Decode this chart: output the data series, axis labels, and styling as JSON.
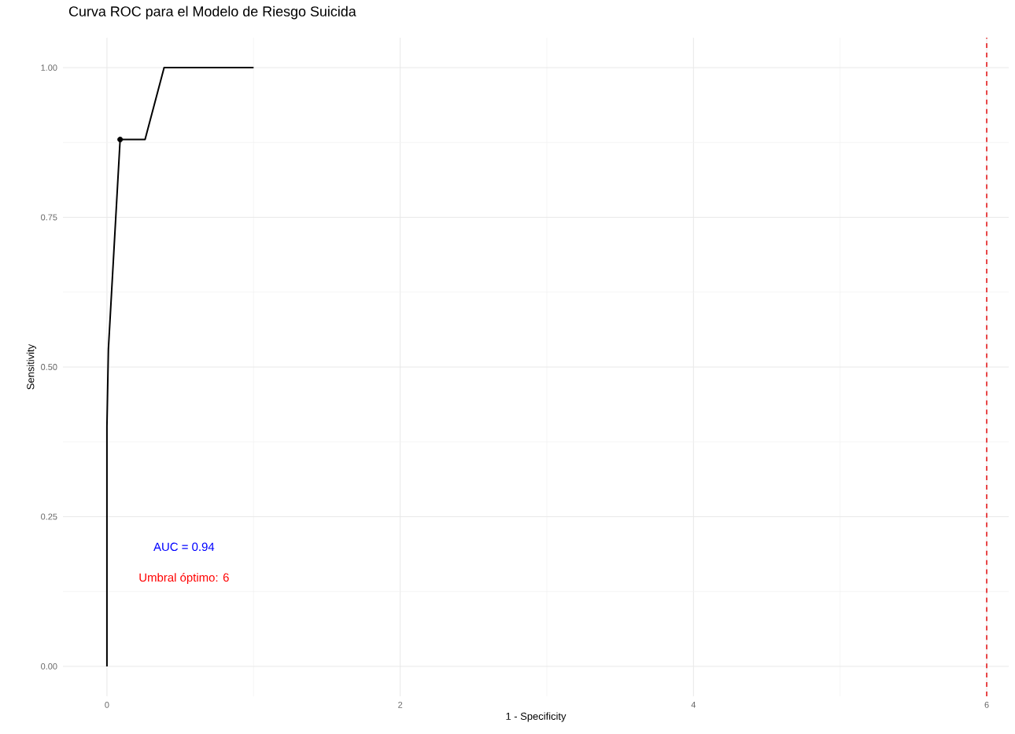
{
  "chart_data": {
    "type": "line",
    "title": "Curva ROC para el Modelo de Riesgo Suicida",
    "xlabel": "1 - Specificity",
    "ylabel": "Sensitivity",
    "series": [
      {
        "color": "#000000",
        "x": [
          0,
          0,
          0.01,
          0.09,
          0.26,
          0.39,
          1
        ],
        "values": [
          0,
          0.4,
          0.53,
          0.88,
          0.88,
          1,
          1
        ]
      },
      {
        "type": "scatter",
        "color": "#000000",
        "x": [
          0.09
        ],
        "values": [
          0.88
        ]
      }
    ],
    "xlim": [
      -0.3,
      6.15
    ],
    "ylim": [
      -0.05,
      1.05
    ],
    "xticks": [
      0,
      2,
      4,
      6
    ],
    "yticks": [
      {
        "value": 0,
        "label": "0.00"
      },
      {
        "value": 0.25,
        "label": "0.25"
      },
      {
        "value": 0.5,
        "label": "0.50"
      },
      {
        "value": 0.75,
        "label": "0.75"
      },
      {
        "value": 1,
        "label": "1.00"
      }
    ],
    "grid": true,
    "marker": "none",
    "line_style": "solid",
    "ref_lines": [
      {
        "axis": "x",
        "value": 6,
        "color": "#e41a1c",
        "line_style": "dashed"
      }
    ],
    "annotations": [
      "AUC = 0.94",
      "Umbral óptimo: 6"
    ]
  }
}
